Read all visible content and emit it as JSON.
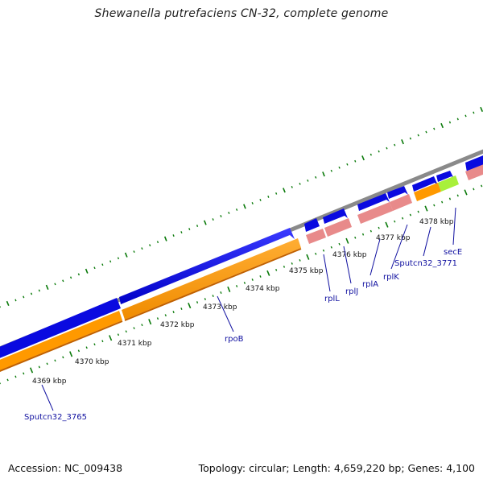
{
  "title": "Shewanella putrefaciens CN-32, complete genome",
  "footer": {
    "accession": "Accession: NC_009438",
    "summary": "Topology: circular; Length: 4,659,220 bp; Genes: 4,100"
  },
  "colors": {
    "backbone": "#8a8a8a",
    "forward_cds": "#0a0ae0",
    "orange_track": "#ff9900",
    "pink_track": "#e88a8a",
    "green_track": "#a8f03a",
    "tick": "#0a7a0a",
    "label": "#1010a0"
  },
  "tick_labels": [
    "4369 kbp",
    "4370 kbp",
    "4371 kbp",
    "4372 kbp",
    "4373 kbp",
    "4374 kbp",
    "4375 kbp",
    "4376 kbp",
    "4377 kbp",
    "4378 kbp"
  ],
  "gene_labels": [
    "Sputcn32_3765",
    "rpoB",
    "rplL",
    "rplJ",
    "rplA",
    "rplK",
    "Sputcn32_3771",
    "secE"
  ]
}
